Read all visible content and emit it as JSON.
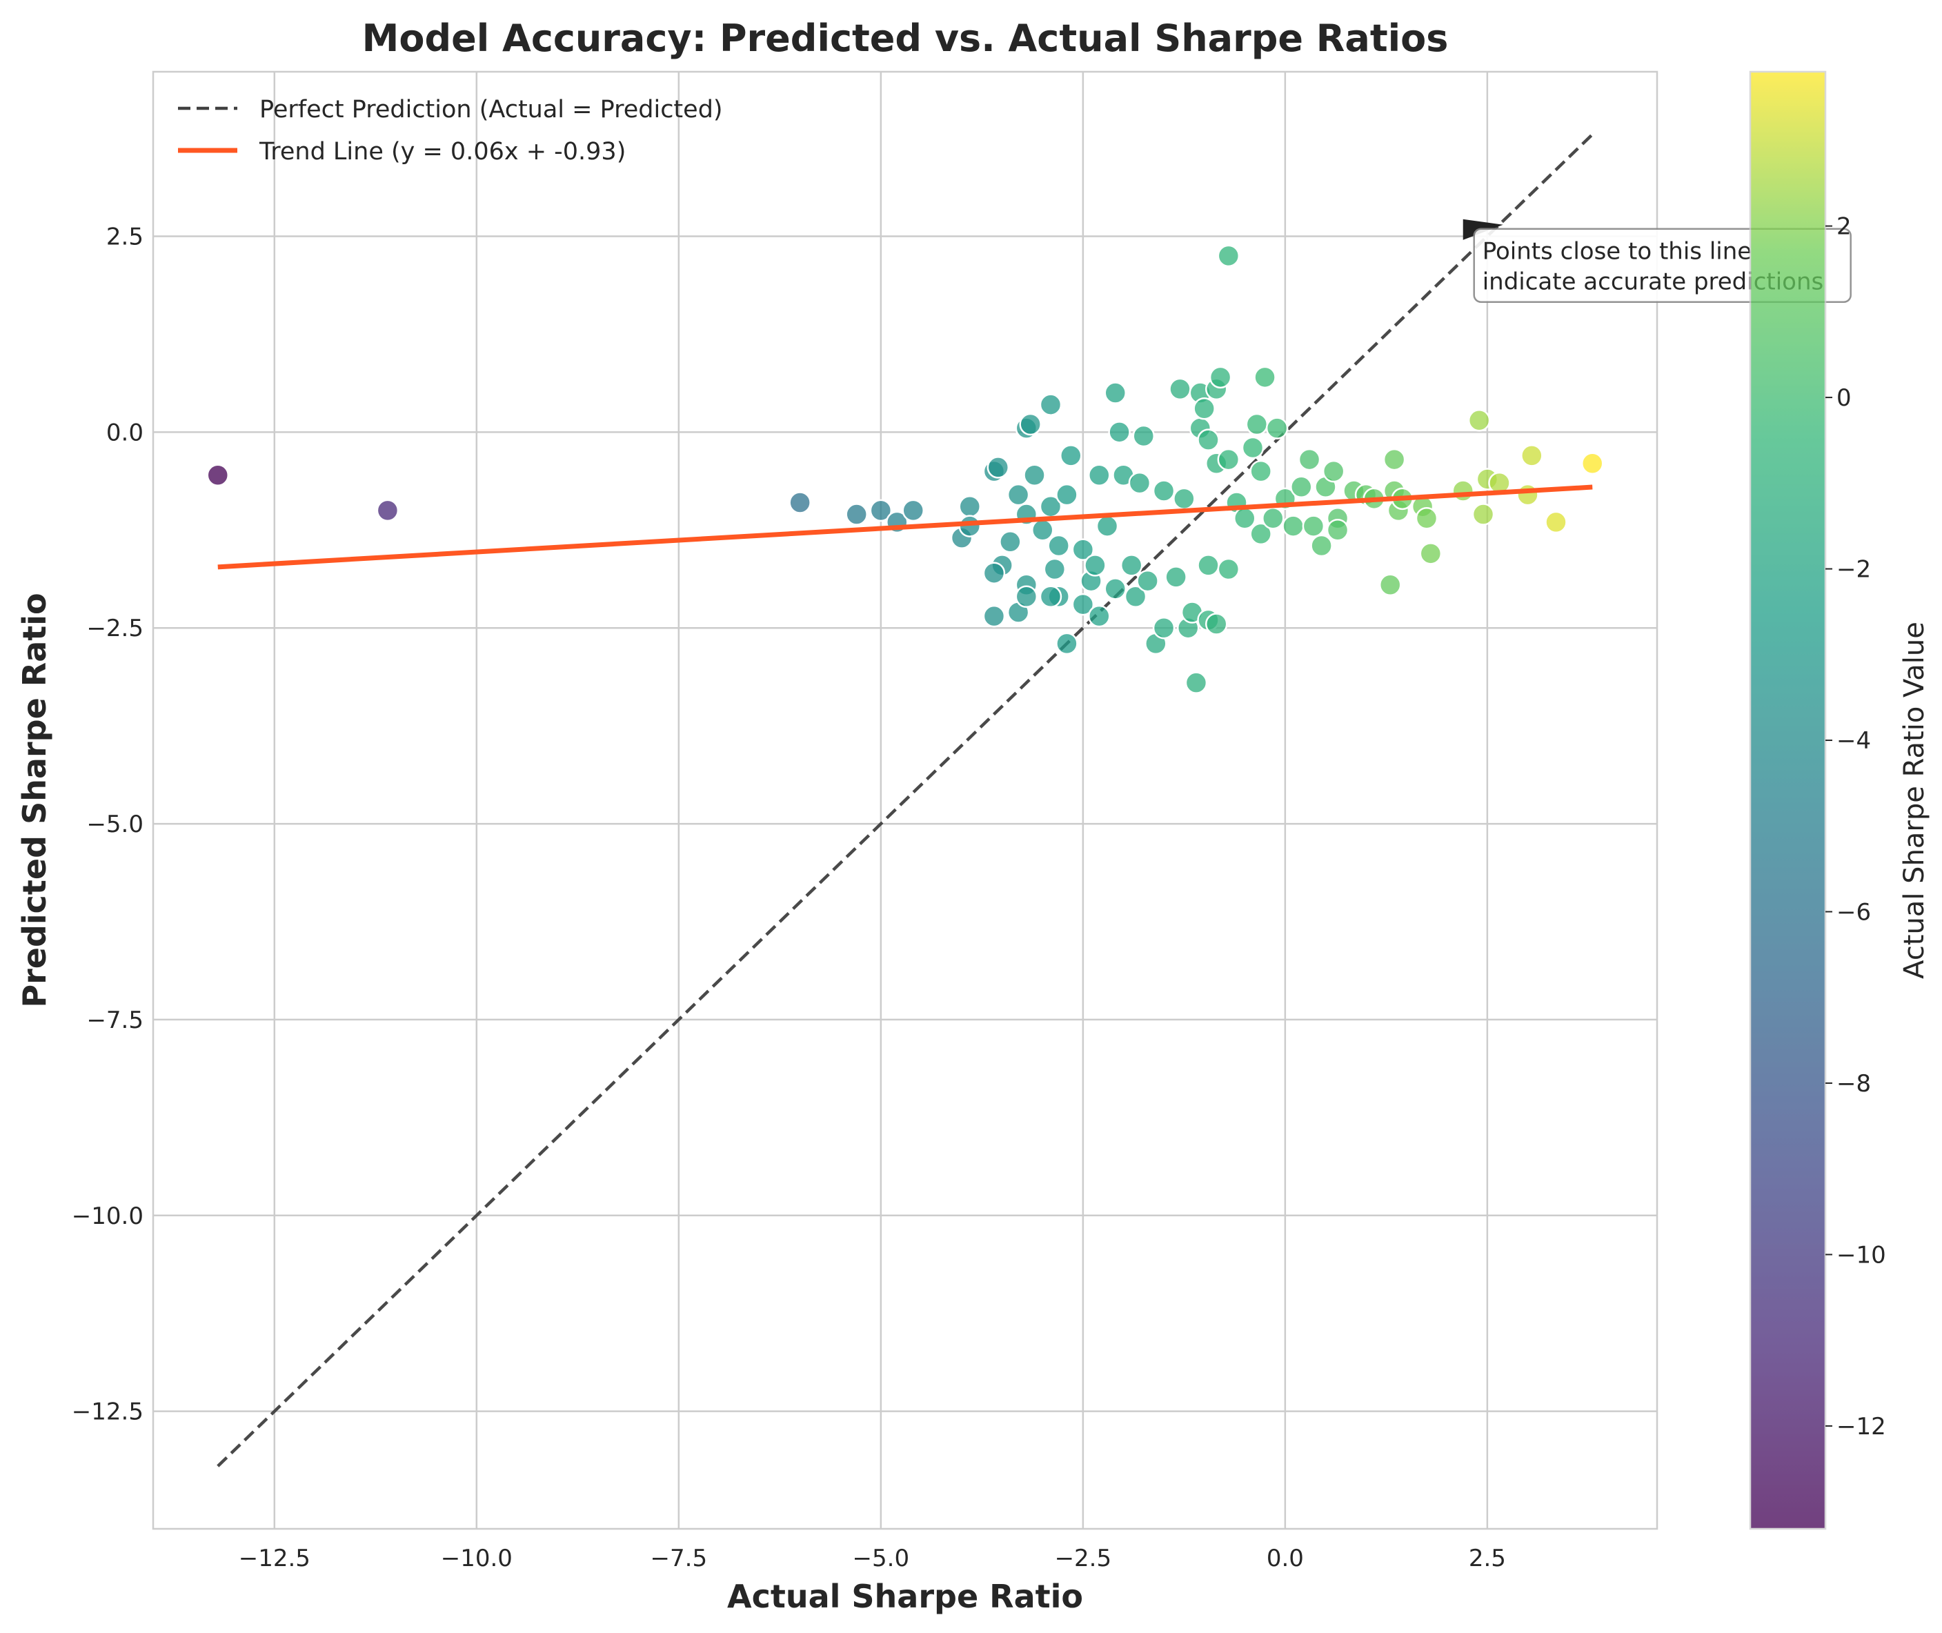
{
  "chart_data": {
    "type": "scatter",
    "title": "Model Accuracy: Predicted vs. Actual Sharpe Ratios",
    "xlabel": "Actual Sharpe Ratio",
    "ylabel": "Predicted Sharpe Ratio",
    "xlim": [
      -14.0,
      4.6
    ],
    "ylim": [
      -14.0,
      4.6
    ],
    "grid": true,
    "x_ticks": [
      -12.5,
      -10.0,
      -7.5,
      -5.0,
      -2.5,
      0.0,
      2.5
    ],
    "y_ticks": [
      2.5,
      0.0,
      -2.5,
      -5.0,
      -7.5,
      -10.0,
      -12.5
    ],
    "x_tick_labels": [
      "−12.5",
      "−10.0",
      "−7.5",
      "−5.0",
      "−2.5",
      "0.0",
      "2.5"
    ],
    "y_tick_labels": [
      "2.5",
      "0.0",
      "−2.5",
      "−5.0",
      "−7.5",
      "−10.0",
      "−12.5"
    ],
    "legend": {
      "placement": "top-left",
      "entries": [
        {
          "label": "Perfect Prediction (Actual = Predicted)",
          "style": "dashed",
          "color": "#404040"
        },
        {
          "label": "Trend Line (y = 0.06x + -0.93)",
          "style": "solid",
          "color": "#ff5722"
        }
      ]
    },
    "perfect_line": {
      "x": [
        -13.2,
        3.8
      ],
      "y": [
        -13.2,
        3.8
      ]
    },
    "trend_line": {
      "slope": 0.06,
      "intercept": -0.93,
      "x_range": [
        -13.2,
        3.8
      ]
    },
    "annotation": {
      "text_lines": [
        "Points close to this line",
        "indicate accurate predictions"
      ],
      "anchor": [
        2.2,
        2.7
      ]
    },
    "colorbar": {
      "label": "Actual Sharpe Ratio Value",
      "colormap": "viridis",
      "range": [
        -13.2,
        3.8
      ],
      "ticks": [
        2,
        0,
        -2,
        -4,
        -6,
        -8,
        -10,
        -12
      ],
      "tick_labels": [
        "2",
        "0",
        "−2",
        "−4",
        "−6",
        "−8",
        "−10",
        "−12"
      ]
    },
    "points": [
      {
        "x": -13.2,
        "y": -0.55
      },
      {
        "x": -11.1,
        "y": -1.0
      },
      {
        "x": -6.0,
        "y": -0.9
      },
      {
        "x": -5.3,
        "y": -1.05
      },
      {
        "x": -5.0,
        "y": -1.0
      },
      {
        "x": -4.8,
        "y": -1.15
      },
      {
        "x": -4.6,
        "y": -1.0
      },
      {
        "x": -3.9,
        "y": -0.95
      },
      {
        "x": -4.0,
        "y": -1.35
      },
      {
        "x": -3.9,
        "y": -1.2
      },
      {
        "x": -3.6,
        "y": -0.5
      },
      {
        "x": -3.55,
        "y": -0.45
      },
      {
        "x": -3.5,
        "y": -1.7
      },
      {
        "x": -3.6,
        "y": -1.8
      },
      {
        "x": -3.6,
        "y": -2.35
      },
      {
        "x": -3.4,
        "y": -1.4
      },
      {
        "x": -3.3,
        "y": -0.8
      },
      {
        "x": -3.3,
        "y": -2.3
      },
      {
        "x": -3.2,
        "y": 0.05
      },
      {
        "x": -3.15,
        "y": 0.1
      },
      {
        "x": -3.2,
        "y": -1.05
      },
      {
        "x": -3.2,
        "y": -1.95
      },
      {
        "x": -3.2,
        "y": -2.1
      },
      {
        "x": -3.1,
        "y": -0.55
      },
      {
        "x": -3.0,
        "y": -1.25
      },
      {
        "x": -2.9,
        "y": 0.35
      },
      {
        "x": -2.9,
        "y": -0.95
      },
      {
        "x": -2.8,
        "y": -1.45
      },
      {
        "x": -2.85,
        "y": -1.75
      },
      {
        "x": -2.8,
        "y": -2.1
      },
      {
        "x": -2.9,
        "y": -2.1
      },
      {
        "x": -2.7,
        "y": -0.8
      },
      {
        "x": -2.65,
        "y": -0.3
      },
      {
        "x": -2.7,
        "y": -2.7
      },
      {
        "x": -2.5,
        "y": -1.5
      },
      {
        "x": -2.5,
        "y": -2.2
      },
      {
        "x": -2.4,
        "y": -1.9
      },
      {
        "x": -2.35,
        "y": -1.7
      },
      {
        "x": -2.3,
        "y": -0.55
      },
      {
        "x": -2.3,
        "y": -2.35
      },
      {
        "x": -2.2,
        "y": -1.2
      },
      {
        "x": -2.1,
        "y": 0.5
      },
      {
        "x": -2.05,
        "y": 0.0
      },
      {
        "x": -2.0,
        "y": -0.55
      },
      {
        "x": -2.1,
        "y": -2.0
      },
      {
        "x": -1.9,
        "y": -1.7
      },
      {
        "x": -1.85,
        "y": -2.1
      },
      {
        "x": -1.75,
        "y": -0.05
      },
      {
        "x": -1.8,
        "y": -0.65
      },
      {
        "x": -1.7,
        "y": -1.9
      },
      {
        "x": -1.6,
        "y": -2.7
      },
      {
        "x": -1.5,
        "y": -0.75
      },
      {
        "x": -1.5,
        "y": -2.5
      },
      {
        "x": -1.35,
        "y": -1.85
      },
      {
        "x": -1.3,
        "y": 0.55
      },
      {
        "x": -1.25,
        "y": -0.85
      },
      {
        "x": -1.2,
        "y": -2.5
      },
      {
        "x": -1.15,
        "y": -2.3
      },
      {
        "x": -1.1,
        "y": -3.2
      },
      {
        "x": -1.05,
        "y": 0.5
      },
      {
        "x": -1.05,
        "y": 0.05
      },
      {
        "x": -1.0,
        "y": 0.3
      },
      {
        "x": -0.95,
        "y": -0.1
      },
      {
        "x": -0.95,
        "y": -1.7
      },
      {
        "x": -0.95,
        "y": -2.4
      },
      {
        "x": -0.85,
        "y": 0.55
      },
      {
        "x": -0.8,
        "y": 0.7
      },
      {
        "x": -0.85,
        "y": -0.4
      },
      {
        "x": -0.85,
        "y": -2.45
      },
      {
        "x": -0.7,
        "y": 2.25
      },
      {
        "x": -0.7,
        "y": -0.35
      },
      {
        "x": -0.7,
        "y": -1.75
      },
      {
        "x": -0.6,
        "y": -0.9
      },
      {
        "x": -0.5,
        "y": -1.1
      },
      {
        "x": -0.4,
        "y": -0.2
      },
      {
        "x": -0.35,
        "y": 0.1
      },
      {
        "x": -0.3,
        "y": -0.5
      },
      {
        "x": -0.3,
        "y": -1.3
      },
      {
        "x": -0.25,
        "y": 0.7
      },
      {
        "x": -0.15,
        "y": -1.1
      },
      {
        "x": -0.1,
        "y": 0.05
      },
      {
        "x": 0.0,
        "y": -0.85
      },
      {
        "x": 0.1,
        "y": -1.2
      },
      {
        "x": 0.2,
        "y": -0.7
      },
      {
        "x": 0.3,
        "y": -0.35
      },
      {
        "x": 0.35,
        "y": -1.2
      },
      {
        "x": 0.45,
        "y": -1.45
      },
      {
        "x": 0.5,
        "y": -0.7
      },
      {
        "x": 0.6,
        "y": -0.5
      },
      {
        "x": 0.65,
        "y": -1.1
      },
      {
        "x": 0.65,
        "y": -1.25
      },
      {
        "x": 0.85,
        "y": -0.75
      },
      {
        "x": 1.0,
        "y": -0.8
      },
      {
        "x": 1.1,
        "y": -0.85
      },
      {
        "x": 1.3,
        "y": -1.95
      },
      {
        "x": 1.35,
        "y": -0.35
      },
      {
        "x": 1.35,
        "y": -0.75
      },
      {
        "x": 1.4,
        "y": -1.0
      },
      {
        "x": 1.45,
        "y": -0.85
      },
      {
        "x": 1.7,
        "y": -0.95
      },
      {
        "x": 1.75,
        "y": -1.1
      },
      {
        "x": 1.8,
        "y": -1.55
      },
      {
        "x": 2.2,
        "y": -0.75
      },
      {
        "x": 2.4,
        "y": 0.15
      },
      {
        "x": 2.45,
        "y": -1.05
      },
      {
        "x": 2.5,
        "y": -0.6
      },
      {
        "x": 2.65,
        "y": -0.65
      },
      {
        "x": 3.0,
        "y": -0.8
      },
      {
        "x": 3.05,
        "y": -0.3
      },
      {
        "x": 3.35,
        "y": -1.15
      },
      {
        "x": 3.8,
        "y": -0.4
      }
    ]
  }
}
